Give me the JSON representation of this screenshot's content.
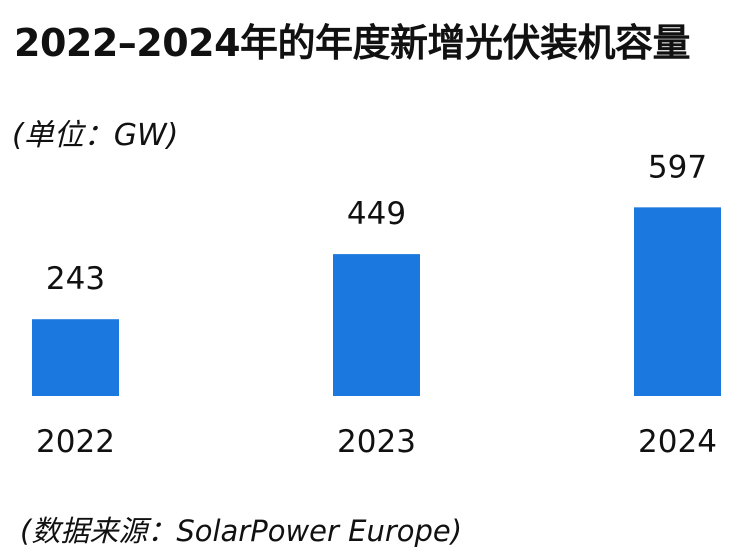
{
  "title": "2022–2024年的年度新增光伏装机容量",
  "unit_label": "(单位：GW)",
  "source_label": "(数据来源：SolarPower Europe)",
  "colors": {
    "bar": "#1a78df",
    "text": "#111111"
  },
  "chart_data": {
    "type": "bar",
    "title": "2022–2024年的年度新增光伏装机容量",
    "categories": [
      "2022",
      "2023",
      "2024"
    ],
    "values": [
      243,
      449,
      597
    ],
    "ylabel": "(单位：GW)",
    "xlabel": "",
    "ylim": [
      0,
      700
    ],
    "grid": false,
    "legend": "none",
    "data_labels": true
  }
}
